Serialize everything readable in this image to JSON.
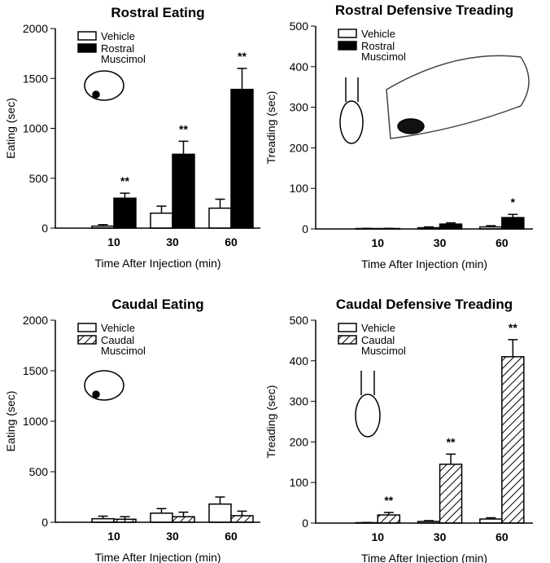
{
  "chart_data": [
    {
      "type": "bar",
      "title": "Rostral Eating",
      "xlabel": "Time After Injection (min)",
      "ylabel": "Eating (sec)",
      "categories": [
        "10",
        "30",
        "60"
      ],
      "ylim": [
        0,
        2000
      ],
      "yticks": [
        0,
        500,
        1000,
        1500,
        2000
      ],
      "series": [
        {
          "name": "Vehicle",
          "color": "#ffffff",
          "pattern": "solid",
          "values": [
            20,
            150,
            200
          ],
          "errors": [
            15,
            70,
            90
          ]
        },
        {
          "name": "Rostral Muscimol",
          "color": "#000000",
          "pattern": "solid",
          "values": [
            300,
            740,
            1390
          ],
          "errors": [
            50,
            130,
            210
          ]
        }
      ],
      "annotations": [
        "**",
        "**",
        "**"
      ]
    },
    {
      "type": "bar",
      "title": "Rostral Defensive Treading",
      "xlabel": "Time After Injection (min)",
      "ylabel": "Treading (sec)",
      "categories": [
        "10",
        "30",
        "60"
      ],
      "ylim": [
        0,
        500
      ],
      "yticks": [
        0,
        100,
        200,
        300,
        400,
        500
      ],
      "series": [
        {
          "name": "Vehicle",
          "color": "#ffffff",
          "pattern": "solid",
          "values": [
            1,
            3,
            5
          ],
          "errors": [
            0.5,
            2,
            3
          ]
        },
        {
          "name": "Rostral Muscimol",
          "color": "#000000",
          "pattern": "solid",
          "values": [
            1,
            12,
            28
          ],
          "errors": [
            0.5,
            3,
            8
          ]
        }
      ],
      "annotations": [
        null,
        null,
        "*"
      ]
    },
    {
      "type": "bar",
      "title": "Caudal Eating",
      "xlabel": "Time After Injection (min)",
      "ylabel": "Eating (sec)",
      "categories": [
        "10",
        "30",
        "60"
      ],
      "ylim": [
        0,
        2000
      ],
      "yticks": [
        0,
        500,
        1000,
        1500,
        2000
      ],
      "series": [
        {
          "name": "Vehicle",
          "color": "#ffffff",
          "pattern": "solid",
          "values": [
            35,
            90,
            180
          ],
          "errors": [
            25,
            45,
            70
          ]
        },
        {
          "name": "Caudal Muscimol",
          "color": "#ffffff",
          "pattern": "hatch",
          "values": [
            30,
            55,
            65
          ],
          "errors": [
            25,
            45,
            45
          ]
        }
      ],
      "annotations": [
        null,
        null,
        null
      ]
    },
    {
      "type": "bar",
      "title": "Caudal Defensive Treading",
      "xlabel": "Time After Injection (min)",
      "ylabel": "Treading (sec)",
      "categories": [
        "10",
        "30",
        "60"
      ],
      "ylim": [
        0,
        500
      ],
      "yticks": [
        0,
        100,
        200,
        300,
        400,
        500
      ],
      "series": [
        {
          "name": "Vehicle",
          "color": "#ffffff",
          "pattern": "solid",
          "values": [
            1,
            4,
            10
          ],
          "errors": [
            0.5,
            2,
            3
          ]
        },
        {
          "name": "Caudal Muscimol",
          "color": "#ffffff",
          "pattern": "hatch",
          "values": [
            20,
            145,
            410
          ],
          "errors": [
            6,
            25,
            42
          ]
        }
      ],
      "annotations": [
        "**",
        "**",
        "**"
      ]
    }
  ]
}
